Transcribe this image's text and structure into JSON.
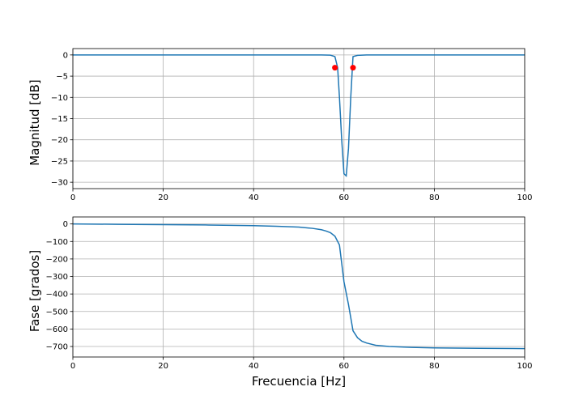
{
  "chart_data": [
    {
      "type": "line",
      "ylabel": "Magnitud [dB]",
      "xlabel": "",
      "xlim": [
        0,
        100
      ],
      "ylim": [
        -31.5,
        1.5
      ],
      "xticks": [
        0,
        20,
        40,
        60,
        80,
        100
      ],
      "yticks": [
        0,
        -5,
        -10,
        -15,
        -20,
        -25,
        -30
      ],
      "grid": true,
      "line_color": "#1f77b4",
      "series": [
        {
          "x": [
            0,
            10,
            20,
            30,
            40,
            50,
            55,
            57,
            58,
            58.6,
            59,
            59.5,
            60,
            60.5,
            61,
            61.5,
            62,
            63,
            65,
            70,
            80,
            90,
            100
          ],
          "y": [
            0,
            0,
            0,
            0,
            0,
            0,
            0,
            -0.05,
            -0.4,
            -3,
            -10,
            -20,
            -28,
            -28.5,
            -22,
            -10,
            -0.4,
            -0.1,
            0,
            0,
            0,
            0,
            0
          ]
        }
      ],
      "markers": {
        "color": "#ff0000",
        "x": [
          58,
          62
        ],
        "y": [
          -3,
          -3
        ]
      }
    },
    {
      "type": "line",
      "ylabel": "Fase [grados]",
      "xlabel": "Frecuencia [Hz]",
      "xlim": [
        0,
        100
      ],
      "ylim": [
        -760,
        40
      ],
      "xticks": [
        0,
        20,
        40,
        60,
        80,
        100
      ],
      "yticks": [
        0,
        -100,
        -200,
        -300,
        -400,
        -500,
        -600,
        -700
      ],
      "grid": true,
      "line_color": "#1f77b4",
      "series": [
        {
          "x": [
            0,
            10,
            20,
            30,
            40,
            45,
            50,
            53,
            55,
            56,
            57,
            58,
            59,
            60,
            61,
            62,
            63,
            64,
            65,
            67,
            70,
            75,
            80,
            90,
            100
          ],
          "y": [
            0,
            -2,
            -4,
            -6,
            -10,
            -13,
            -18,
            -25,
            -33,
            -40,
            -50,
            -70,
            -120,
            -330,
            -460,
            -610,
            -650,
            -670,
            -680,
            -693,
            -700,
            -705,
            -708,
            -710,
            -712
          ]
        }
      ]
    }
  ]
}
